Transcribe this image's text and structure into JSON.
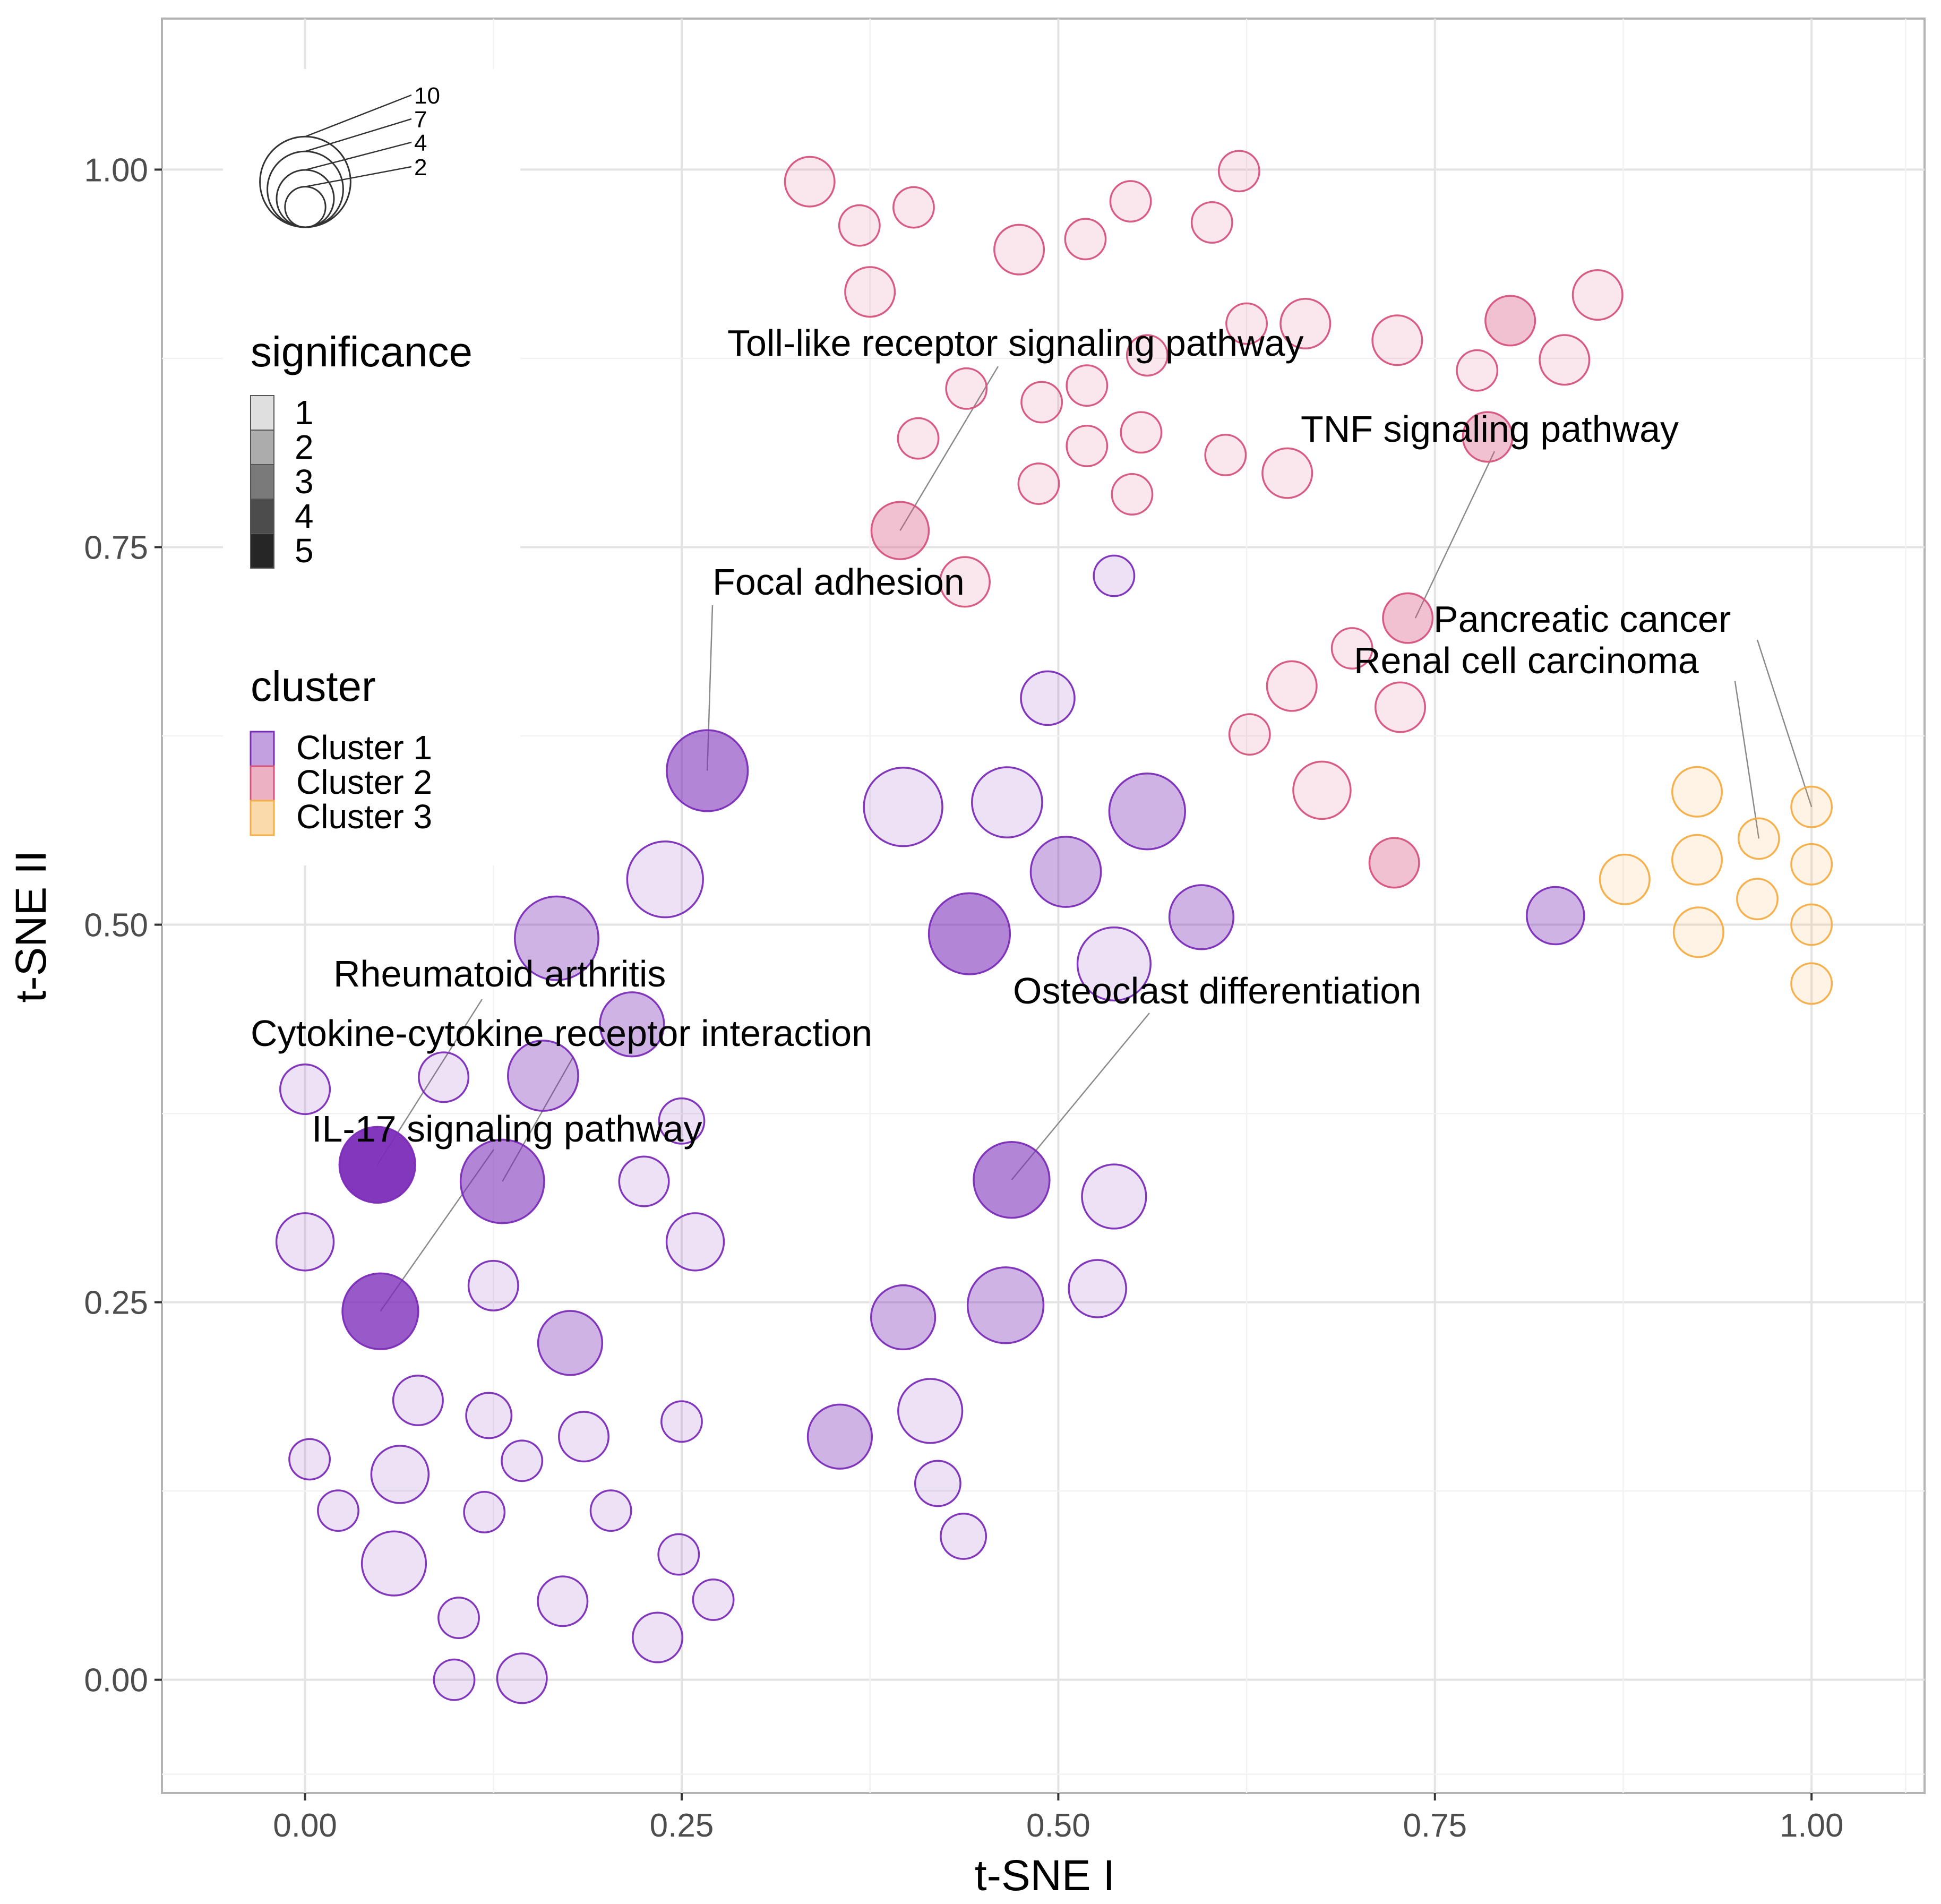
{
  "chart_data": {
    "type": "scatter",
    "title": "",
    "xlabel": "t-SNE I",
    "ylabel": "t-SNE II",
    "xlim": [
      -0.095,
      1.075
    ],
    "ylim": [
      -0.075,
      1.1
    ],
    "xticks": [
      0.0,
      0.25,
      0.5,
      0.75,
      1.0
    ],
    "xtick_labels": [
      "0.00",
      "0.25",
      "0.50",
      "0.75",
      "1.00"
    ],
    "yticks": [
      0.0,
      0.25,
      0.5,
      0.75,
      1.0
    ],
    "ytick_labels": [
      "0.00",
      "0.25",
      "0.50",
      "0.75",
      "1.00"
    ],
    "grid": true,
    "colors": {
      "Cluster 1": "#7B2CB8",
      "Cluster 2": "#D6537C",
      "Cluster 3": "#F5AD45"
    },
    "legend": {
      "size_title": "",
      "size_values": [
        10,
        7,
        4,
        2
      ],
      "size_labels": [
        "10",
        "7",
        "4",
        "2"
      ],
      "significance_title": "significance",
      "significance_levels": [
        1,
        2,
        3,
        4,
        5
      ],
      "significance_labels": [
        "1",
        "2",
        "3",
        "4",
        "5"
      ],
      "cluster_title": "cluster",
      "cluster_labels": [
        "Cluster 1",
        "Cluster 2",
        "Cluster 3"
      ]
    },
    "annotations": [
      {
        "text": "Toll-like receptor signaling pathway",
        "x": 0.395,
        "y": 0.761
      },
      {
        "text": "TNF signaling pathway",
        "x": 0.737,
        "y": 0.703
      },
      {
        "text": "Focal adhesion",
        "x": 0.267,
        "y": 0.602
      },
      {
        "text": "Pancreatic cancer",
        "x": 1.0,
        "y": 0.578
      },
      {
        "text": "Renal cell carcinoma",
        "x": 0.965,
        "y": 0.557
      },
      {
        "text": "Rheumatoid arthritis",
        "x": 0.048,
        "y": 0.341
      },
      {
        "text": "Cytokine-cytokine receptor interaction",
        "x": 0.131,
        "y": 0.33
      },
      {
        "text": "IL-17 signaling pathway",
        "x": 0.05,
        "y": 0.244
      },
      {
        "text": "Osteoclast differentiation",
        "x": 0.469,
        "y": 0.331
      }
    ],
    "series": [
      {
        "name": "Cluster 1",
        "points": [
          {
            "x": 0.048,
            "y": 0.341,
            "size": 7,
            "significance": 5
          },
          {
            "x": 0.05,
            "y": 0.244,
            "size": 7,
            "significance": 4
          },
          {
            "x": 0.131,
            "y": 0.33,
            "size": 8.5,
            "significance": 3
          },
          {
            "x": 0.267,
            "y": 0.602,
            "size": 8,
            "significance": 3
          },
          {
            "x": 0.469,
            "y": 0.331,
            "size": 7,
            "significance": 3
          },
          {
            "x": 0.441,
            "y": 0.494,
            "size": 8,
            "significance": 3
          },
          {
            "x": 0.167,
            "y": 0.491,
            "size": 8.5,
            "significance": 2
          },
          {
            "x": 0.158,
            "y": 0.4,
            "size": 6,
            "significance": 2
          },
          {
            "x": 0.217,
            "y": 0.434,
            "size": 5,
            "significance": 2
          },
          {
            "x": 0.176,
            "y": 0.223,
            "size": 5,
            "significance": 2
          },
          {
            "x": 0.355,
            "y": 0.161,
            "size": 5,
            "significance": 2
          },
          {
            "x": 0.397,
            "y": 0.24,
            "size": 5,
            "significance": 2
          },
          {
            "x": 0.465,
            "y": 0.248,
            "size": 7,
            "significance": 2
          },
          {
            "x": 0.505,
            "y": 0.535,
            "size": 6,
            "significance": 2
          },
          {
            "x": 0.559,
            "y": 0.575,
            "size": 7,
            "significance": 2
          },
          {
            "x": 0.595,
            "y": 0.505,
            "size": 5,
            "significance": 2
          },
          {
            "x": 0.83,
            "y": 0.506,
            "size": 4,
            "significance": 2
          },
          {
            "x": 0.239,
            "y": 0.53,
            "size": 7,
            "significance": 1
          },
          {
            "x": 0.397,
            "y": 0.578,
            "size": 7.5,
            "significance": 1
          },
          {
            "x": 0.466,
            "y": 0.581,
            "size": 6,
            "significance": 1
          },
          {
            "x": 0.537,
            "y": 0.474,
            "size": 6.5,
            "significance": 1
          },
          {
            "x": 0.537,
            "y": 0.32,
            "size": 5,
            "significance": 1
          },
          {
            "x": 0.526,
            "y": 0.259,
            "size": 4,
            "significance": 1
          },
          {
            "x": 0.415,
            "y": 0.178,
            "size": 5,
            "significance": 1
          },
          {
            "x": 0.42,
            "y": 0.13,
            "size": 2.5,
            "significance": 1
          },
          {
            "x": 0.437,
            "y": 0.095,
            "size": 2.5,
            "significance": 1
          },
          {
            "x": 0.493,
            "y": 0.65,
            "size": 3.5,
            "significance": 1
          },
          {
            "x": 0.537,
            "y": 0.731,
            "size": 2,
            "significance": 1
          },
          {
            "x": 0.0,
            "y": 0.391,
            "size": 3,
            "significance": 1
          },
          {
            "x": 0.092,
            "y": 0.399,
            "size": 3,
            "significance": 1
          },
          {
            "x": 0.0,
            "y": 0.29,
            "size": 4,
            "significance": 1
          },
          {
            "x": 0.125,
            "y": 0.261,
            "size": 3,
            "significance": 1
          },
          {
            "x": 0.225,
            "y": 0.33,
            "size": 3,
            "significance": 1
          },
          {
            "x": 0.25,
            "y": 0.37,
            "size": 2.5,
            "significance": 1
          },
          {
            "x": 0.259,
            "y": 0.29,
            "size": 4,
            "significance": 1
          },
          {
            "x": 0.075,
            "y": 0.185,
            "size": 3,
            "significance": 1
          },
          {
            "x": 0.122,
            "y": 0.175,
            "size": 2.5,
            "significance": 1
          },
          {
            "x": 0.185,
            "y": 0.161,
            "size": 3,
            "significance": 1
          },
          {
            "x": 0.25,
            "y": 0.171,
            "size": 2,
            "significance": 1
          },
          {
            "x": 0.003,
            "y": 0.146,
            "size": 2,
            "significance": 1
          },
          {
            "x": 0.063,
            "y": 0.136,
            "size": 4,
            "significance": 1
          },
          {
            "x": 0.144,
            "y": 0.145,
            "size": 2,
            "significance": 1
          },
          {
            "x": 0.022,
            "y": 0.112,
            "size": 2,
            "significance": 1
          },
          {
            "x": 0.119,
            "y": 0.111,
            "size": 2,
            "significance": 1
          },
          {
            "x": 0.203,
            "y": 0.112,
            "size": 2,
            "significance": 1
          },
          {
            "x": 0.059,
            "y": 0.077,
            "size": 5,
            "significance": 1
          },
          {
            "x": 0.248,
            "y": 0.083,
            "size": 2,
            "significance": 1
          },
          {
            "x": 0.102,
            "y": 0.041,
            "size": 2,
            "significance": 1
          },
          {
            "x": 0.171,
            "y": 0.052,
            "size": 3,
            "significance": 1
          },
          {
            "x": 0.271,
            "y": 0.053,
            "size": 2,
            "significance": 1
          },
          {
            "x": 0.234,
            "y": 0.028,
            "size": 3,
            "significance": 1
          },
          {
            "x": 0.099,
            "y": 0.0,
            "size": 2,
            "significance": 1
          },
          {
            "x": 0.144,
            "y": 0.001,
            "size": 3,
            "significance": 1
          }
        ]
      },
      {
        "name": "Cluster 2",
        "points": [
          {
            "x": 0.335,
            "y": 0.992,
            "size": 3,
            "significance": 1
          },
          {
            "x": 0.368,
            "y": 0.963,
            "size": 2,
            "significance": 1
          },
          {
            "x": 0.404,
            "y": 0.975,
            "size": 2,
            "significance": 1
          },
          {
            "x": 0.375,
            "y": 0.919,
            "size": 3,
            "significance": 1
          },
          {
            "x": 0.474,
            "y": 0.947,
            "size": 3,
            "significance": 1
          },
          {
            "x": 0.518,
            "y": 0.954,
            "size": 2,
            "significance": 1
          },
          {
            "x": 0.548,
            "y": 0.979,
            "size": 2,
            "significance": 1
          },
          {
            "x": 0.602,
            "y": 0.965,
            "size": 2,
            "significance": 1
          },
          {
            "x": 0.62,
            "y": 0.999,
            "size": 2,
            "significance": 1
          },
          {
            "x": 0.625,
            "y": 0.898,
            "size": 2,
            "significance": 1
          },
          {
            "x": 0.664,
            "y": 0.898,
            "size": 3,
            "significance": 1
          },
          {
            "x": 0.725,
            "y": 0.887,
            "size": 3,
            "significance": 1
          },
          {
            "x": 0.778,
            "y": 0.867,
            "size": 2,
            "significance": 1
          },
          {
            "x": 0.8,
            "y": 0.9,
            "size": 3,
            "significance": 2
          },
          {
            "x": 0.836,
            "y": 0.874,
            "size": 3,
            "significance": 1
          },
          {
            "x": 0.858,
            "y": 0.917,
            "size": 3,
            "significance": 1
          },
          {
            "x": 0.439,
            "y": 0.855,
            "size": 2,
            "significance": 1
          },
          {
            "x": 0.407,
            "y": 0.822,
            "size": 2,
            "significance": 1
          },
          {
            "x": 0.489,
            "y": 0.846,
            "size": 2,
            "significance": 1
          },
          {
            "x": 0.519,
            "y": 0.857,
            "size": 2,
            "significance": 1
          },
          {
            "x": 0.559,
            "y": 0.877,
            "size": 2,
            "significance": 1
          },
          {
            "x": 0.519,
            "y": 0.817,
            "size": 2,
            "significance": 1
          },
          {
            "x": 0.555,
            "y": 0.826,
            "size": 2,
            "significance": 1
          },
          {
            "x": 0.487,
            "y": 0.792,
            "size": 2,
            "significance": 1
          },
          {
            "x": 0.549,
            "y": 0.785,
            "size": 2,
            "significance": 1
          },
          {
            "x": 0.611,
            "y": 0.811,
            "size": 2,
            "significance": 1
          },
          {
            "x": 0.652,
            "y": 0.799,
            "size": 3,
            "significance": 1
          },
          {
            "x": 0.785,
            "y": 0.823,
            "size": 3,
            "significance": 2
          },
          {
            "x": 0.395,
            "y": 0.761,
            "size": 4,
            "significance": 2
          },
          {
            "x": 0.438,
            "y": 0.727,
            "size": 3,
            "significance": 1
          },
          {
            "x": 0.732,
            "y": 0.703,
            "size": 3,
            "significance": 2
          },
          {
            "x": 0.695,
            "y": 0.683,
            "size": 2,
            "significance": 1
          },
          {
            "x": 0.655,
            "y": 0.658,
            "size": 3,
            "significance": 1
          },
          {
            "x": 0.727,
            "y": 0.644,
            "size": 3,
            "significance": 1
          },
          {
            "x": 0.627,
            "y": 0.626,
            "size": 2,
            "significance": 1
          },
          {
            "x": 0.675,
            "y": 0.589,
            "size": 4,
            "significance": 1
          },
          {
            "x": 0.723,
            "y": 0.541,
            "size": 3,
            "significance": 2
          }
        ]
      },
      {
        "name": "Cluster 3",
        "points": [
          {
            "x": 0.924,
            "y": 0.588,
            "size": 3,
            "significance": 1
          },
          {
            "x": 1.0,
            "y": 0.578,
            "size": 2,
            "significance": 1
          },
          {
            "x": 0.965,
            "y": 0.557,
            "size": 2,
            "significance": 1
          },
          {
            "x": 0.924,
            "y": 0.543,
            "size": 3,
            "significance": 1
          },
          {
            "x": 1.0,
            "y": 0.54,
            "size": 2,
            "significance": 1
          },
          {
            "x": 0.876,
            "y": 0.53,
            "size": 3,
            "significance": 1
          },
          {
            "x": 0.964,
            "y": 0.517,
            "size": 2,
            "significance": 1
          },
          {
            "x": 1.0,
            "y": 0.5,
            "size": 2,
            "significance": 1
          },
          {
            "x": 0.925,
            "y": 0.495,
            "size": 3,
            "significance": 1
          },
          {
            "x": 1.0,
            "y": 0.461,
            "size": 2,
            "significance": 1
          }
        ]
      }
    ]
  }
}
